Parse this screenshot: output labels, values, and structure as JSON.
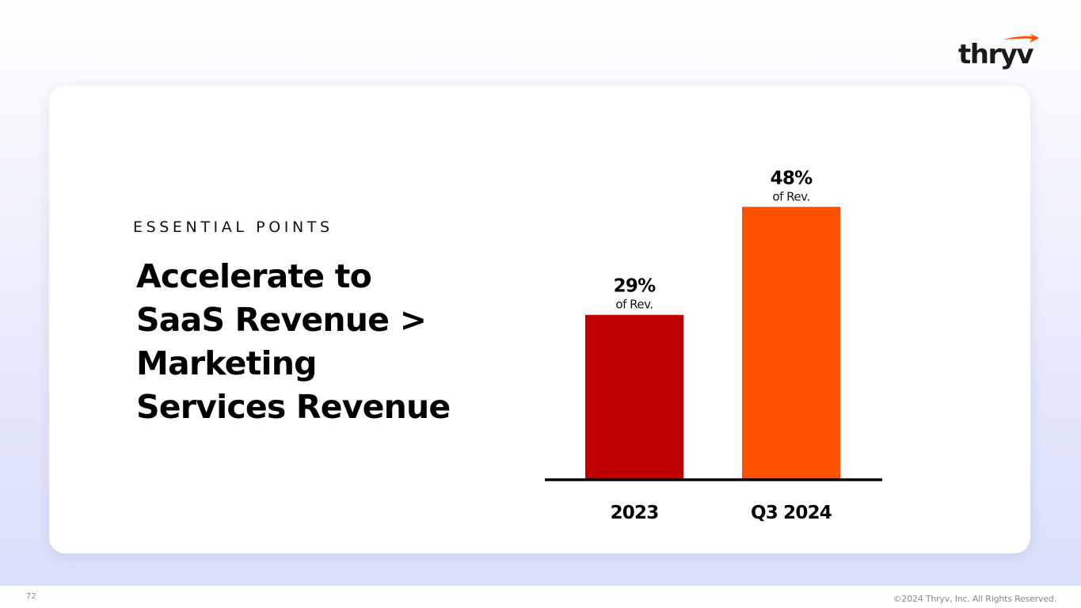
{
  "brand": {
    "logo_text": "thryv",
    "accent": "#ff5000",
    "text_color": "#1a1a1a"
  },
  "slide": {
    "eyebrow": "ESSENTIAL POINTS",
    "headline": [
      "Accelerate to",
      "SaaS Revenue >",
      "Marketing",
      "Services Revenue"
    ]
  },
  "chart_data": {
    "type": "bar",
    "title": "",
    "xlabel": "",
    "ylabel": "",
    "ylim": [
      0,
      55
    ],
    "categories": [
      "2023",
      "Q3 2024"
    ],
    "values": [
      29,
      48
    ],
    "value_labels": [
      "29%",
      "48%"
    ],
    "sub_label": "of Rev.",
    "colors": [
      "#be0000",
      "#ff5000"
    ],
    "baseline_color": "#000000",
    "grid": false
  },
  "footer": {
    "page_number": "72",
    "copyright": "©2024 Thryv, Inc. All Rights Reserved."
  }
}
